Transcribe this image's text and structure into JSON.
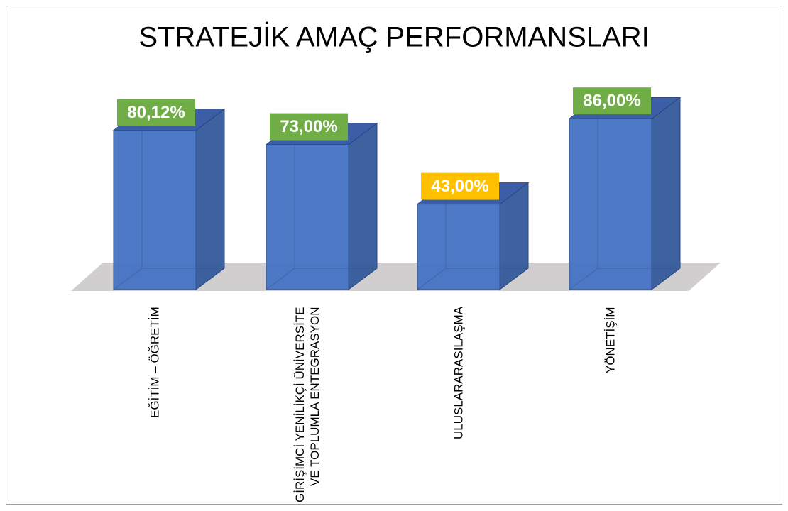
{
  "chart_data": {
    "type": "bar3d",
    "title": "STRATEJİK AMAÇ PERFORMANSLARI",
    "categories": [
      "EĞİTİM – ÖĞRETİM",
      "GİRİŞİMCİ YENİLİKÇİ ÜNİVERSİTE VE TOPLUMLA ENTEGRASYON",
      "ULUSLARARASILAŞMA",
      "YÖNETİŞİM"
    ],
    "values": [
      80.12,
      73,
      43,
      86
    ],
    "value_labels": [
      "80,12%",
      "73,00%",
      "43,00%",
      "86,00%"
    ],
    "label_colors": [
      "#70ad47",
      "#70ad47",
      "#ffc000",
      "#70ad47"
    ],
    "color": "#4472c4",
    "ylim": [
      0,
      100
    ]
  }
}
